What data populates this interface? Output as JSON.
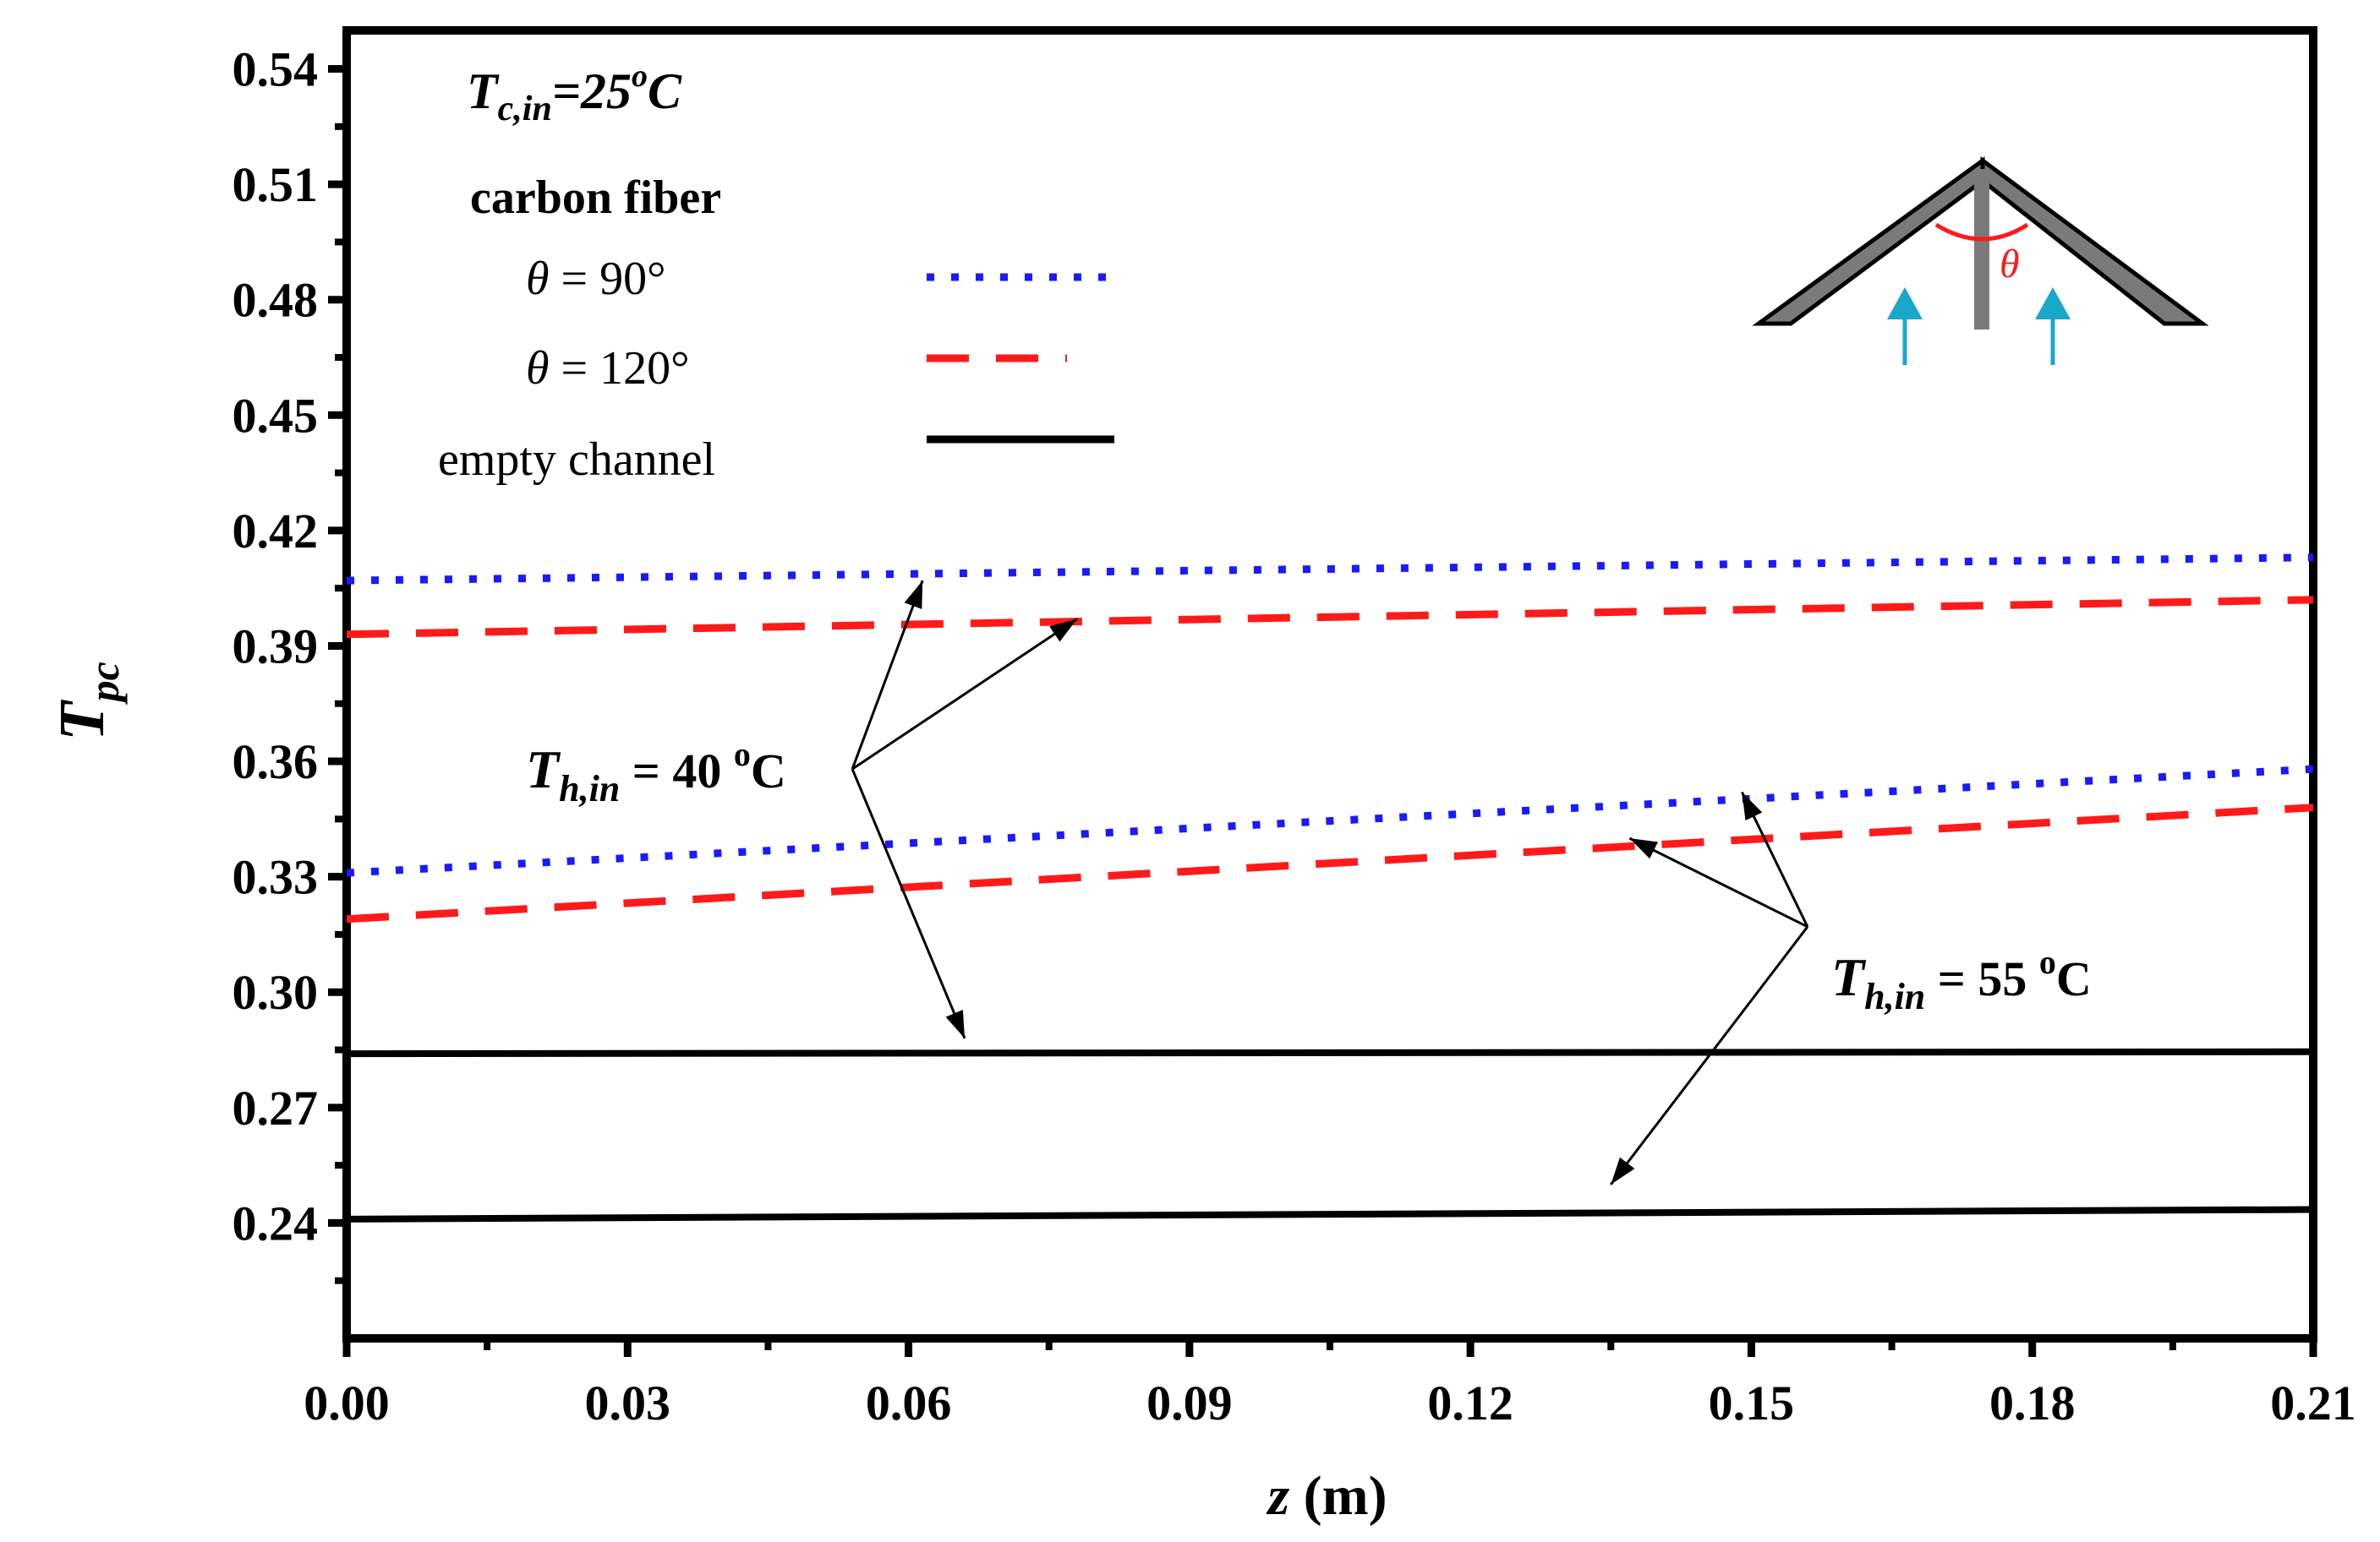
{
  "chart_data": {
    "type": "line",
    "xlabel_var": "z",
    "xlabel_unit": "(m)",
    "ylabel_main": "T",
    "ylabel_sub": "pc",
    "xlim": [
      0.0,
      0.21
    ],
    "ylim": [
      0.21,
      0.55
    ],
    "x_ticks": [
      "0.00",
      "0.03",
      "0.06",
      "0.09",
      "0.12",
      "0.15",
      "0.18",
      "0.21"
    ],
    "y_ticks": [
      "0.24",
      "0.27",
      "0.30",
      "0.33",
      "0.36",
      "0.39",
      "0.42",
      "0.45",
      "0.48",
      "0.51",
      "0.54"
    ],
    "legend": {
      "title_var": "T",
      "title_sub": "c,in",
      "title_rest": "=25",
      "title_sup": "o",
      "title_unit": "C",
      "material": "carbon fiber",
      "entries": [
        {
          "theta": "θ",
          "label": "= 90°",
          "style": "dotted",
          "color": "#1a1aff"
        },
        {
          "theta": "θ",
          "label": "= 120°",
          "style": "dashed",
          "color": "#ff1a1a"
        },
        {
          "label": "empty channel",
          "style": "solid",
          "color": "#000000"
        }
      ]
    },
    "series": [
      {
        "name": "θ = 90°, Th,in = 40 °C",
        "style": "dotted",
        "color": "#1a1aff",
        "x": [
          0.0,
          0.21
        ],
        "y": [
          0.407,
          0.413
        ]
      },
      {
        "name": "θ = 120°, Th,in = 40 °C",
        "style": "dashed",
        "color": "#ff1a1a",
        "x": [
          0.0,
          0.21
        ],
        "y": [
          0.393,
          0.402
        ]
      },
      {
        "name": "θ = 90°, Th,in = 55 °C",
        "style": "dotted",
        "color": "#1a1aff",
        "x": [
          0.0,
          0.21
        ],
        "y": [
          0.331,
          0.358
        ]
      },
      {
        "name": "θ = 120°, Th,in = 55 °C",
        "style": "dashed",
        "color": "#ff1a1a",
        "x": [
          0.0,
          0.21
        ],
        "y": [
          0.319,
          0.348
        ]
      },
      {
        "name": "empty channel, Th,in = 40 °C",
        "style": "solid",
        "color": "#000000",
        "x": [
          0.0,
          0.21
        ],
        "y": [
          0.284,
          0.2845
        ]
      },
      {
        "name": "empty channel, Th,in = 55 °C",
        "style": "solid",
        "color": "#000000",
        "x": [
          0.0,
          0.21
        ],
        "y": [
          0.241,
          0.2435
        ]
      }
    ],
    "annotations": [
      {
        "var": "T",
        "sub": "h,in",
        "text": "= 40 ",
        "sup": "o",
        "unit": "C",
        "anchor": [
          0.054,
          0.358
        ],
        "targets": [
          [
            0.0615,
            0.407
          ],
          [
            0.078,
            0.397
          ],
          [
            0.066,
            0.288
          ]
        ]
      },
      {
        "var": "T",
        "sub": "h,in",
        "text": "= 55 ",
        "sup": "o",
        "unit": "C",
        "anchor": [
          0.156,
          0.317
        ],
        "targets": [
          [
            0.149,
            0.352
          ],
          [
            0.137,
            0.34
          ],
          [
            0.135,
            0.25
          ]
        ]
      }
    ],
    "inset_theta": "θ",
    "colors": {
      "dotted": "#1a1aff",
      "dashed": "#ff1a1a",
      "solid": "#000000",
      "arrows": "#1aa7c9",
      "angle": "#ff1a1a",
      "fin": "#7a7a7a"
    }
  }
}
